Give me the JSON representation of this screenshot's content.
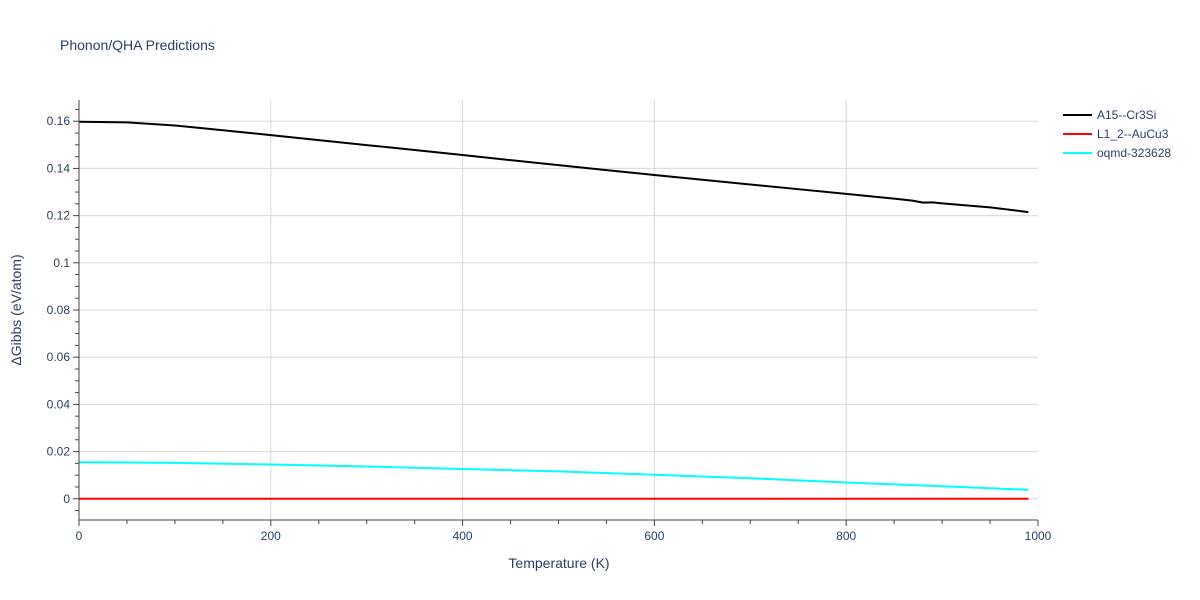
{
  "chart_data": {
    "type": "line",
    "title": "Phonon/QHA Predictions",
    "xlabel": "Temperature (K)",
    "ylabel": "ΔGibbs (eV/atom)",
    "xlim": [
      0,
      1000
    ],
    "ylim": [
      -0.009,
      0.169
    ],
    "x_ticks": [
      0,
      200,
      400,
      600,
      800,
      1000
    ],
    "y_ticks": [
      0,
      0.02,
      0.04,
      0.06,
      0.08,
      0.1,
      0.12,
      0.14,
      0.16
    ],
    "x_tick_labels": [
      "0",
      "200",
      "400",
      "600",
      "800",
      "1000"
    ],
    "y_tick_labels": [
      "0",
      "0.02",
      "0.04",
      "0.06",
      "0.08",
      "0.1",
      "0.12",
      "0.14",
      "0.16"
    ],
    "grid": true,
    "legend_position": "top-right",
    "series": [
      {
        "name": "A15--Cr3Si",
        "color": "#000000",
        "x": [
          0,
          50,
          100,
          150,
          200,
          250,
          300,
          350,
          400,
          450,
          500,
          550,
          600,
          650,
          700,
          750,
          800,
          850,
          870,
          880,
          890,
          900,
          950,
          990
        ],
        "y": [
          0.1598,
          0.1595,
          0.1582,
          0.1562,
          0.1541,
          0.152,
          0.1499,
          0.1478,
          0.1457,
          0.1435,
          0.1414,
          0.1393,
          0.1372,
          0.1352,
          0.1332,
          0.1312,
          0.1292,
          0.1272,
          0.1263,
          0.1255,
          0.1256,
          0.1252,
          0.1235,
          0.1215
        ]
      },
      {
        "name": "L1_2--AuCu3",
        "color": "#ff0000",
        "x": [
          0,
          990
        ],
        "y": [
          0,
          0
        ]
      },
      {
        "name": "oqmd-323628",
        "color": "#00ffff",
        "x": [
          0,
          100,
          200,
          300,
          400,
          500,
          600,
          700,
          800,
          900,
          990
        ],
        "y": [
          0.0155,
          0.0152,
          0.0145,
          0.0137,
          0.0126,
          0.0116,
          0.0102,
          0.0087,
          0.0069,
          0.0053,
          0.0038
        ]
      }
    ]
  }
}
